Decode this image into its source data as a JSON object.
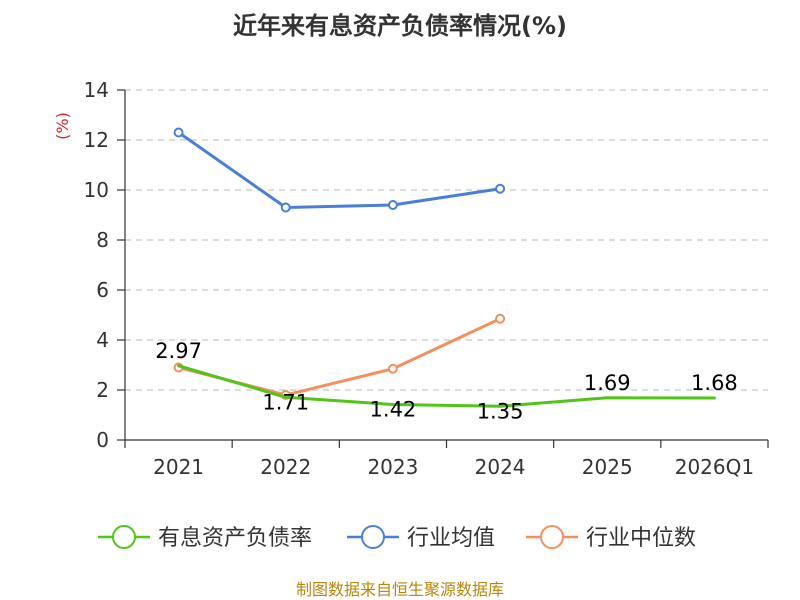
{
  "chart_data": {
    "type": "line",
    "title": "近年来有息资产负债率情况(%)",
    "ylabel": "(%)",
    "xlabel": "",
    "categories": [
      "2021",
      "2022",
      "2023",
      "2024",
      "2025",
      "2026Q1"
    ],
    "ylim": [
      0,
      14
    ],
    "yticks": [
      0,
      2,
      4,
      6,
      8,
      10,
      12,
      14
    ],
    "grid": true,
    "legend_position": "bottom",
    "series": [
      {
        "name": "有息资产负债率",
        "color": "#52c41a",
        "values": [
          2.97,
          1.71,
          1.42,
          1.35,
          1.69,
          1.68
        ],
        "labels": [
          "2.97",
          "1.71",
          "1.42",
          "1.35",
          "1.69",
          "1.68"
        ],
        "markers": false
      },
      {
        "name": "行业均值",
        "color": "#4a7fd8",
        "values": [
          12.3,
          9.3,
          9.4,
          10.05,
          null,
          null
        ],
        "markers": true
      },
      {
        "name": "行业中位数",
        "color": "#f5905e",
        "values": [
          2.9,
          1.8,
          2.85,
          4.85,
          null,
          null
        ],
        "markers": true
      }
    ],
    "source": "制图数据来自恒生聚源数据库"
  }
}
